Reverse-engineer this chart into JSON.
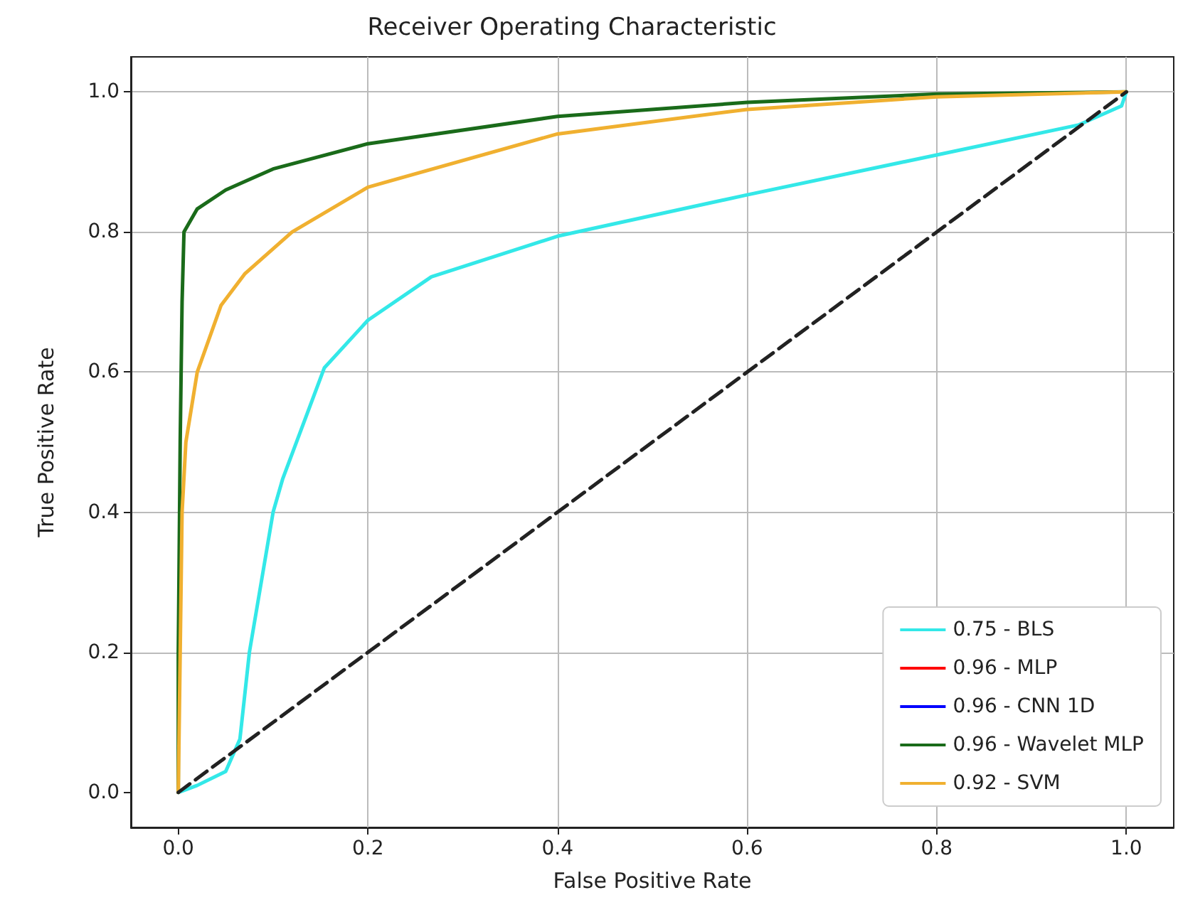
{
  "chart_data": {
    "type": "line",
    "title": "Receiver Operating Characteristic",
    "xlabel": "False Positive Rate",
    "ylabel": "True Positive Rate",
    "xlim": [
      -0.05,
      1.05
    ],
    "ylim": [
      -0.05,
      1.05
    ],
    "xticks": [
      {
        "value": 0,
        "label": "0.0"
      },
      {
        "value": 0.2,
        "label": "0.2"
      },
      {
        "value": 0.4,
        "label": "0.4"
      },
      {
        "value": 0.6,
        "label": "0.6"
      },
      {
        "value": 0.8,
        "label": "0.8"
      },
      {
        "value": 1,
        "label": "1.0"
      }
    ],
    "yticks": [
      {
        "value": 0,
        "label": "0.0"
      },
      {
        "value": 0.2,
        "label": "0.2"
      },
      {
        "value": 0.4,
        "label": "0.4"
      },
      {
        "value": 0.6,
        "label": "0.6"
      },
      {
        "value": 0.8,
        "label": "0.8"
      },
      {
        "value": 1,
        "label": "1.0"
      }
    ],
    "grid": true,
    "legend": "bottom right",
    "marker": "none",
    "series": [
      {
        "name": "0.75 - BLS",
        "color": "#33e8e8",
        "x": [
          0,
          0.02,
          0.05,
          0.065,
          0.075,
          0.09,
          0.1,
          0.11,
          0.154,
          0.2,
          0.267,
          0.4,
          0.6,
          0.8,
          0.95,
          0.995,
          1
        ],
        "values": [
          0,
          0.01,
          0.03,
          0.076,
          0.2,
          0.32,
          0.4,
          0.447,
          0.606,
          0.674,
          0.736,
          0.794,
          0.853,
          0.91,
          0.953,
          0.98,
          1
        ]
      },
      {
        "name": "0.96 - MLP",
        "color": "#ff0000"
      },
      {
        "name": "0.96 - CNN 1D",
        "color": "#0000ff"
      },
      {
        "name": "0.96 - Wavelet MLP",
        "color": "#1a6b1a",
        "x": [
          0,
          0,
          0.002,
          0.004,
          0.006,
          0.02,
          0.05,
          0.1,
          0.2,
          0.4,
          0.6,
          0.8,
          1
        ],
        "values": [
          0,
          0.2,
          0.5,
          0.7,
          0.8,
          0.833,
          0.86,
          0.89,
          0.926,
          0.965,
          0.985,
          0.997,
          1
        ]
      },
      {
        "name": "0.92 - SVM",
        "color": "#f0b030",
        "x": [
          0,
          0.002,
          0.004,
          0.008,
          0.02,
          0.045,
          0.07,
          0.12,
          0.2,
          0.4,
          0.6,
          0.8,
          1
        ],
        "values": [
          0,
          0.2,
          0.4,
          0.5,
          0.6,
          0.695,
          0.74,
          0.8,
          0.864,
          0.94,
          0.975,
          0.993,
          1
        ]
      },
      {
        "color": "#222222",
        "line_style": "dashed",
        "x": [
          0,
          1
        ],
        "values": [
          0,
          1
        ]
      }
    ]
  }
}
